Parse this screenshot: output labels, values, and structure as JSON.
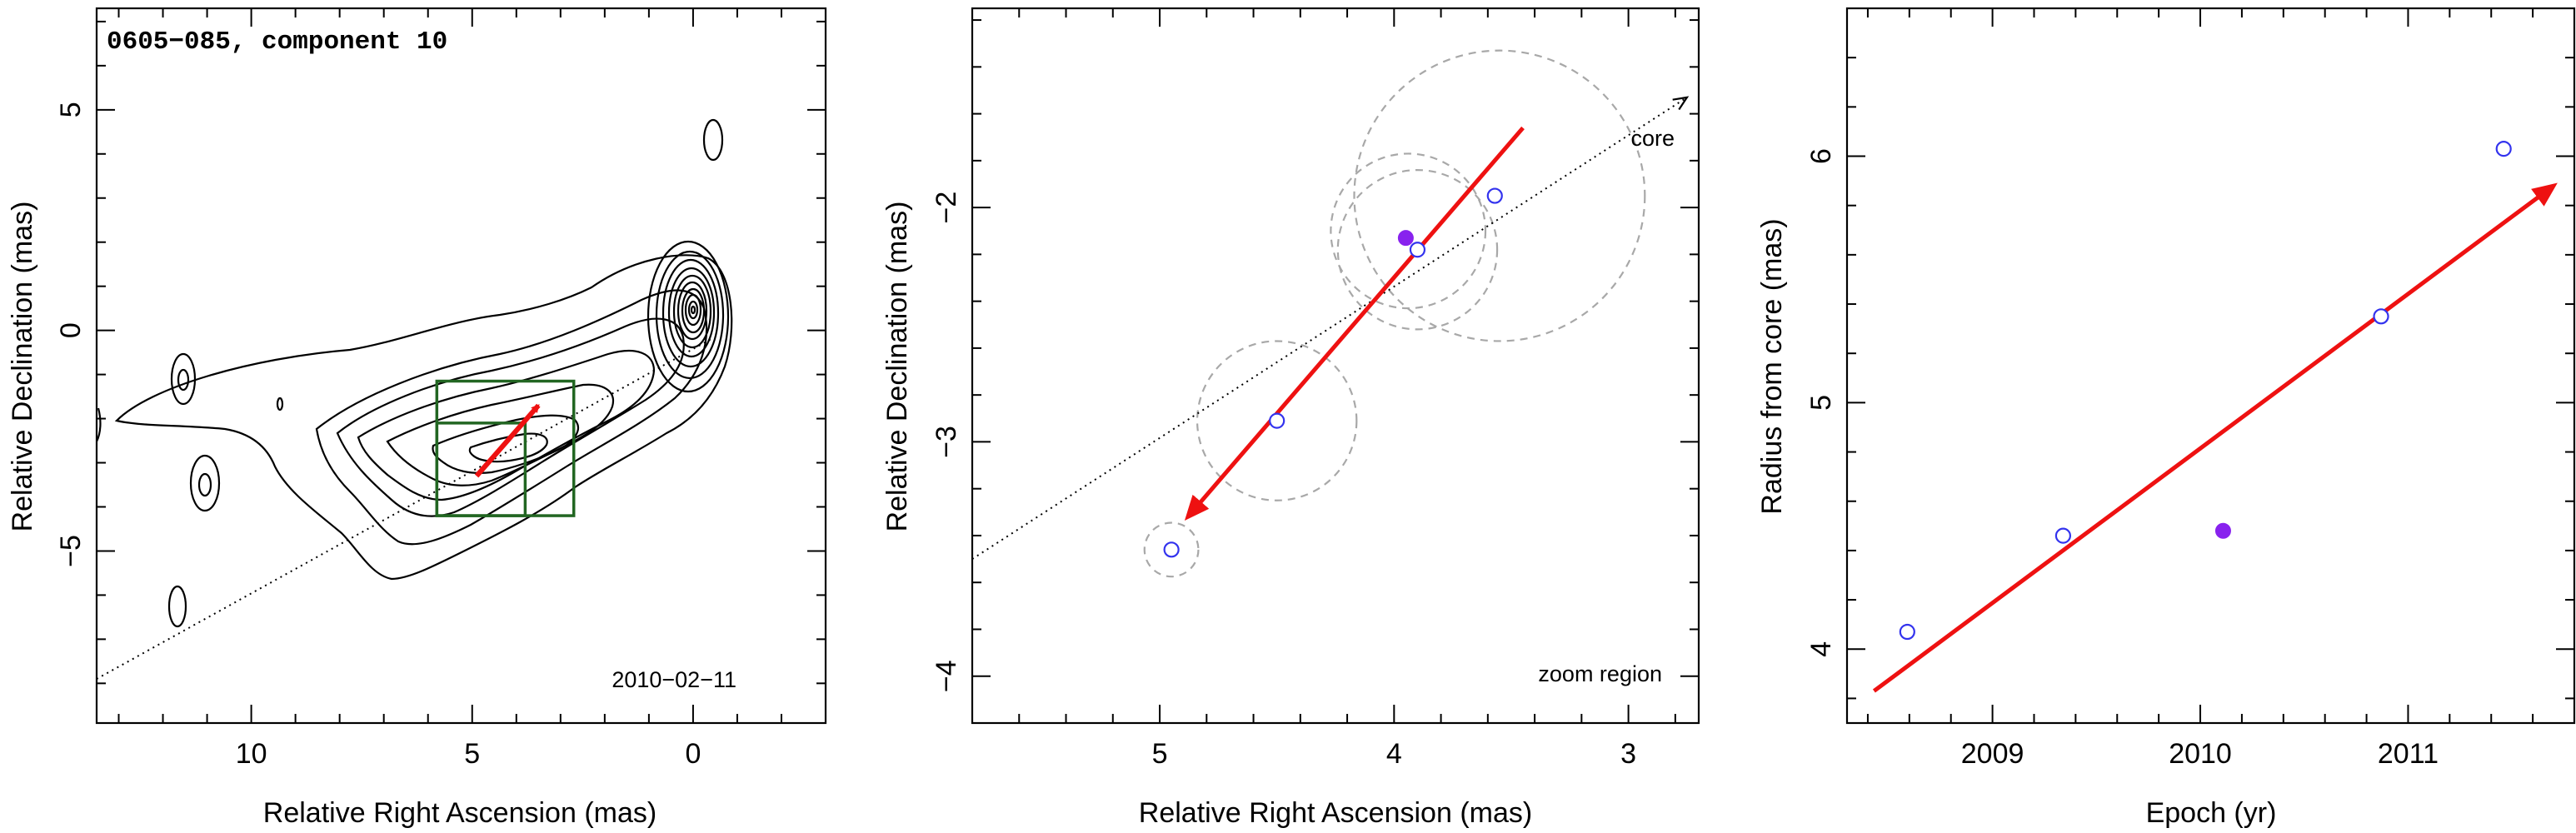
{
  "colors": {
    "arrow": "#ee1111",
    "marker": "#3333ee",
    "marker_filled": "#8822ee",
    "box": "#226622",
    "circle": "#a8a8a8",
    "frame": "#000000"
  },
  "chart_data": [
    {
      "type": "contour",
      "title": "0605−085, component 10",
      "annotation": "2010−02−11",
      "xlabel": "Relative Right Ascension (mas)",
      "ylabel": "Relative Declination (mas)",
      "xlim": [
        13.5,
        -3
      ],
      "ylim": [
        -8.9,
        7.3
      ],
      "xticks": [
        10,
        5,
        0
      ],
      "yticks": [
        5,
        0,
        -5
      ],
      "xtick_labels": [
        "10",
        "5",
        "0"
      ],
      "ytick_labels": [
        "5",
        "0",
        "−5"
      ],
      "jet_axis_line": {
        "from": [
          13.5,
          -7.9
        ],
        "to": [
          -0.4,
          -0.2
        ]
      },
      "boxes": [
        {
          "x1": 5.8,
          "x2": 2.7,
          "y1": -1.15,
          "y2": -4.2
        },
        {
          "x1": 5.8,
          "x2": 3.8,
          "y1": -2.1,
          "y2": -4.2
        }
      ],
      "arrow": {
        "from": [
          4.9,
          -3.3
        ],
        "to": [
          3.5,
          -1.7
        ]
      }
    },
    {
      "type": "scatter",
      "xlabel": "Relative Right Ascension (mas)",
      "ylabel": "Relative Declination (mas)",
      "annotation": "zoom region",
      "core_label": "core",
      "xlim": [
        5.8,
        2.7
      ],
      "ylim": [
        -4.2,
        -1.15
      ],
      "xticks": [
        5,
        4,
        3
      ],
      "yticks": [
        -2,
        -3,
        -4
      ],
      "xtick_labels": [
        "5",
        "4",
        "3"
      ],
      "ytick_labels": [
        "−2",
        "−3",
        "−4"
      ],
      "points_open": [
        {
          "x": 4.95,
          "y": -3.46
        },
        {
          "x": 4.5,
          "y": -2.91
        },
        {
          "x": 3.9,
          "y": -2.18
        },
        {
          "x": 3.57,
          "y": -1.95
        }
      ],
      "points_filled": [
        {
          "x": 3.95,
          "y": -2.13
        }
      ],
      "circles": [
        {
          "x": 4.95,
          "y": -3.46,
          "r": 0.115
        },
        {
          "x": 4.5,
          "y": -2.91,
          "r": 0.34
        },
        {
          "x": 3.94,
          "y": -2.1,
          "r": 0.33
        },
        {
          "x": 3.9,
          "y": -2.18,
          "r": 0.34
        },
        {
          "x": 3.55,
          "y": -1.95,
          "r": 0.62
        }
      ],
      "jet_axis_line": {
        "from": [
          5.8,
          -3.5
        ],
        "to": [
          2.75,
          -1.53
        ]
      },
      "arrow": {
        "from": [
          3.45,
          -1.66
        ],
        "to": [
          4.88,
          -3.32
        ]
      }
    },
    {
      "type": "scatter",
      "xlabel": "Epoch (yr)",
      "ylabel": "Radius from core (mas)",
      "xlim": [
        2008.3,
        2011.8
      ],
      "ylim": [
        3.7,
        6.6
      ],
      "xticks": [
        2009,
        2010,
        2011
      ],
      "yticks": [
        4,
        5,
        6
      ],
      "xtick_labels": [
        "2009",
        "2010",
        "2011"
      ],
      "ytick_labels": [
        "4",
        "5",
        "6"
      ],
      "points_open": [
        {
          "x": 2008.59,
          "y": 4.07
        },
        {
          "x": 2009.34,
          "y": 4.46
        },
        {
          "x": 2010.87,
          "y": 5.35
        },
        {
          "x": 2011.46,
          "y": 6.03
        }
      ],
      "points_filled": [
        {
          "x": 2010.11,
          "y": 4.48
        }
      ],
      "fit_arrow": {
        "from": [
          2008.43,
          3.83
        ],
        "to": [
          2011.7,
          5.88
        ]
      }
    }
  ]
}
